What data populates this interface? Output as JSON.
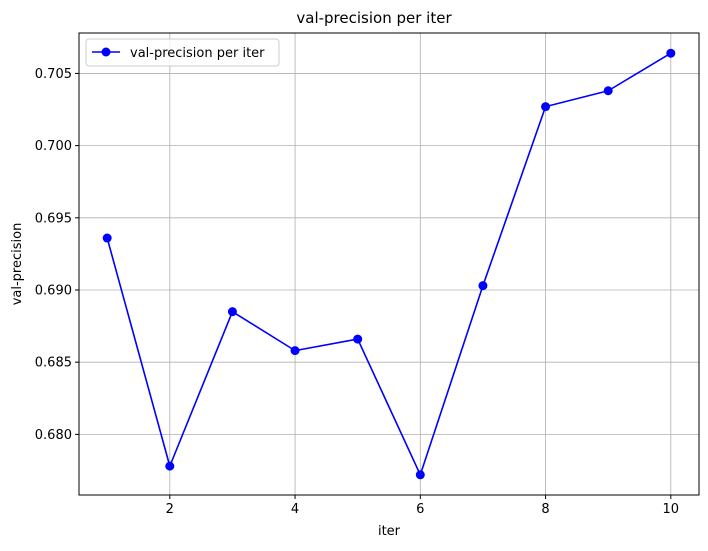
{
  "chart_data": {
    "type": "line",
    "title": "val-precision per iter",
    "xlabel": "iter",
    "ylabel": "val-precision",
    "x": [
      1,
      2,
      3,
      4,
      5,
      6,
      7,
      8,
      9,
      10
    ],
    "series": [
      {
        "name": "val-precision per iter",
        "values": [
          0.6936,
          0.6778,
          0.6885,
          0.6858,
          0.6866,
          0.6772,
          0.6903,
          0.7027,
          0.7038,
          0.7064
        ],
        "color": "#0000ff",
        "marker": "circle"
      }
    ],
    "xlim": [
      0.55,
      10.45
    ],
    "ylim": [
      0.6758,
      0.7078
    ],
    "xticks": [
      2,
      4,
      6,
      8,
      10
    ],
    "xtick_labels": [
      "2",
      "4",
      "6",
      "8",
      "10"
    ],
    "yticks": [
      0.68,
      0.685,
      0.69,
      0.695,
      0.7,
      0.705
    ],
    "ytick_labels": [
      "0.680",
      "0.685",
      "0.690",
      "0.695",
      "0.700",
      "0.705"
    ],
    "grid": true,
    "legend_position": "top-left"
  }
}
